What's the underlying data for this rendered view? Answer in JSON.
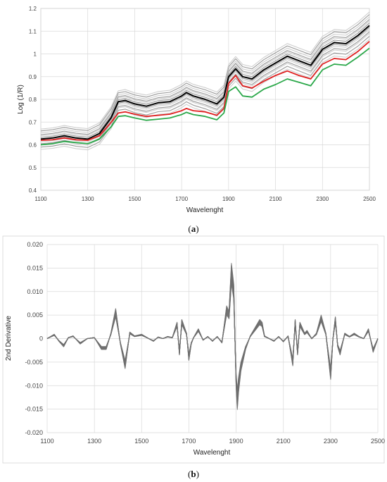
{
  "chart_data": [
    {
      "type": "line",
      "panel_label": [
        "(",
        "a",
        ")"
      ],
      "xlabel": "Wavelenght",
      "ylabel": "Log (1/R)",
      "xlim": [
        1100,
        2500
      ],
      "ylim": [
        0.4,
        1.2
      ],
      "x_ticks": [
        "1100",
        "1300",
        "1500",
        "1700",
        "1900",
        "2100",
        "2300",
        "2500"
      ],
      "y_ticks": [
        "0.4",
        "0.5",
        "0.6",
        "0.7",
        "0.8",
        "0.9",
        "1",
        "1.1",
        "1.2"
      ],
      "grid": true,
      "series_colors": {
        "mean": "#000000",
        "highlight_red": "#e02020",
        "highlight_green": "#2ba84a",
        "samples": "#9a9a9a",
        "samples_light": "#cfcfcf"
      },
      "x": [
        1100,
        1150,
        1200,
        1250,
        1300,
        1350,
        1400,
        1430,
        1460,
        1500,
        1550,
        1600,
        1650,
        1700,
        1720,
        1750,
        1800,
        1850,
        1880,
        1900,
        1930,
        1960,
        2000,
        2050,
        2100,
        2150,
        2200,
        2250,
        2300,
        2350,
        2400,
        2450,
        2500
      ],
      "series": [
        {
          "role": "mean",
          "values": [
            0.625,
            0.63,
            0.64,
            0.63,
            0.625,
            0.65,
            0.72,
            0.79,
            0.795,
            0.78,
            0.77,
            0.785,
            0.79,
            0.815,
            0.83,
            0.815,
            0.8,
            0.78,
            0.81,
            0.9,
            0.935,
            0.9,
            0.89,
            0.93,
            0.96,
            0.99,
            0.97,
            0.95,
            1.02,
            1.05,
            1.045,
            1.08,
            1.125
          ]
        },
        {
          "role": "highlight_red",
          "values": [
            0.62,
            0.622,
            0.63,
            0.622,
            0.62,
            0.64,
            0.7,
            0.74,
            0.745,
            0.735,
            0.725,
            0.73,
            0.735,
            0.75,
            0.76,
            0.75,
            0.745,
            0.73,
            0.76,
            0.87,
            0.905,
            0.86,
            0.85,
            0.88,
            0.905,
            0.925,
            0.905,
            0.89,
            0.955,
            0.98,
            0.975,
            1.01,
            1.055
          ]
        },
        {
          "role": "highlight_green",
          "values": [
            0.6,
            0.605,
            0.615,
            0.61,
            0.605,
            0.625,
            0.68,
            0.725,
            0.728,
            0.718,
            0.708,
            0.713,
            0.718,
            0.733,
            0.743,
            0.733,
            0.725,
            0.71,
            0.74,
            0.835,
            0.855,
            0.815,
            0.81,
            0.845,
            0.865,
            0.89,
            0.875,
            0.86,
            0.93,
            0.955,
            0.95,
            0.985,
            1.025
          ]
        }
      ],
      "sample_offsets": [
        -0.045,
        -0.035,
        -0.025,
        -0.02,
        -0.012,
        -0.006,
        0.0,
        0.008,
        0.015,
        0.02,
        0.028,
        0.036,
        0.044
      ]
    },
    {
      "type": "line",
      "panel_label": [
        "(",
        "b",
        ")"
      ],
      "xlabel": "Wavelenght",
      "ylabel": "2nd Derivative",
      "xlim": [
        1100,
        2500
      ],
      "ylim": [
        -0.02,
        0.02
      ],
      "x_ticks": [
        "1100",
        "1300",
        "1500",
        "1700",
        "1900",
        "2100",
        "2300",
        "2500"
      ],
      "y_ticks": [
        "0.020",
        "0.015",
        "0.010",
        "0.005",
        "0",
        "-0.005",
        "-0.010",
        "-0.015",
        "-0.020"
      ],
      "grid": true,
      "series_colors": {
        "samples": "#6f6f6f"
      },
      "x": [
        1100,
        1130,
        1150,
        1170,
        1190,
        1210,
        1240,
        1270,
        1300,
        1330,
        1350,
        1370,
        1390,
        1410,
        1430,
        1450,
        1470,
        1500,
        1530,
        1550,
        1570,
        1590,
        1610,
        1630,
        1650,
        1660,
        1670,
        1690,
        1700,
        1710,
        1720,
        1740,
        1760,
        1780,
        1800,
        1820,
        1840,
        1860,
        1870,
        1880,
        1890,
        1895,
        1900,
        1905,
        1910,
        1920,
        1940,
        1960,
        1980,
        2000,
        2010,
        2020,
        2040,
        2060,
        2080,
        2100,
        2120,
        2140,
        2150,
        2160,
        2170,
        2180,
        2190,
        2200,
        2220,
        2240,
        2260,
        2280,
        2300,
        2310,
        2320,
        2330,
        2340,
        2360,
        2380,
        2400,
        2420,
        2440,
        2460,
        2480,
        2500
      ],
      "values": [
        0.0,
        0.0008,
        -0.0005,
        -0.0015,
        0.0002,
        0.0005,
        -0.001,
        0.0,
        0.0002,
        -0.002,
        -0.002,
        0.001,
        0.0055,
        -0.001,
        -0.0055,
        0.0012,
        0.0005,
        0.0008,
        0.0,
        -0.0005,
        0.0003,
        0.0,
        0.0004,
        0.0002,
        0.003,
        -0.003,
        0.0035,
        0.001,
        -0.004,
        -0.001,
        0.0002,
        0.0018,
        -0.0003,
        0.0004,
        -0.0005,
        0.0004,
        -0.0008,
        0.006,
        0.005,
        0.0138,
        0.01,
        0.0,
        -0.009,
        -0.013,
        -0.01,
        -0.006,
        -0.002,
        0.0005,
        0.002,
        0.0035,
        0.003,
        0.0005,
        0.0,
        -0.0005,
        0.0004,
        -0.0006,
        0.0005,
        -0.005,
        0.0035,
        -0.003,
        0.003,
        0.002,
        0.001,
        0.0015,
        0.0,
        0.001,
        0.0043,
        0.001,
        -0.0075,
        0.0,
        0.004,
        -0.0015,
        -0.003,
        0.001,
        0.0004,
        0.001,
        0.0004,
        0.0,
        0.0018,
        -0.0025,
        0.0
      ],
      "sample_count": 14
    }
  ]
}
